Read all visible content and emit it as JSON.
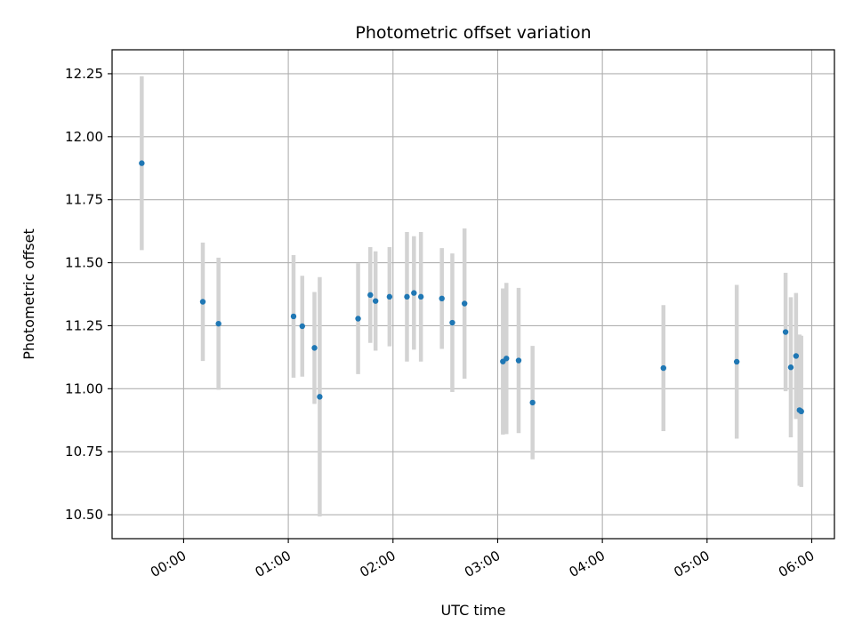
{
  "chart_data": {
    "type": "scatter",
    "title": "Photometric offset variation",
    "xlabel": "UTC time",
    "ylabel": "Photometric offset",
    "xlim": [
      "23:19",
      "06:13"
    ],
    "ylim": [
      10.405,
      12.345
    ],
    "x_ticks": [
      "00:00",
      "01:00",
      "02:00",
      "03:00",
      "04:00",
      "05:00",
      "06:00"
    ],
    "y_ticks": [
      10.5,
      10.75,
      11.0,
      11.25,
      11.5,
      11.75,
      12.0,
      12.25
    ],
    "y_tick_labels": [
      "10.50",
      "10.75",
      "11.00",
      "11.25",
      "11.50",
      "11.75",
      "12.00",
      "12.25"
    ],
    "grid": true,
    "colors": {
      "marker": "#1f77b4",
      "error_bar": "#d3d3d3",
      "grid": "#b0b0b0"
    },
    "series": [
      {
        "points": [
          {
            "x": "23:36",
            "y": 11.895,
            "err": 0.345
          },
          {
            "x": "00:11",
            "y": 11.345,
            "err": 0.235
          },
          {
            "x": "00:20",
            "y": 11.258,
            "err": 0.262
          },
          {
            "x": "01:03",
            "y": 11.287,
            "err": 0.243
          },
          {
            "x": "01:08",
            "y": 11.248,
            "err": 0.2
          },
          {
            "x": "01:15",
            "y": 11.162,
            "err": 0.222
          },
          {
            "x": "01:18",
            "y": 10.968,
            "err": 0.475
          },
          {
            "x": "01:40",
            "y": 11.278,
            "err": 0.22
          },
          {
            "x": "01:47",
            "y": 11.372,
            "err": 0.19
          },
          {
            "x": "01:50",
            "y": 11.348,
            "err": 0.197
          },
          {
            "x": "01:58",
            "y": 11.365,
            "err": 0.197
          },
          {
            "x": "02:08",
            "y": 11.365,
            "err": 0.257
          },
          {
            "x": "02:12",
            "y": 11.38,
            "err": 0.225
          },
          {
            "x": "02:16",
            "y": 11.365,
            "err": 0.257
          },
          {
            "x": "02:28",
            "y": 11.358,
            "err": 0.2
          },
          {
            "x": "02:34",
            "y": 11.262,
            "err": 0.275
          },
          {
            "x": "02:41",
            "y": 11.338,
            "err": 0.298
          },
          {
            "x": "03:03",
            "y": 11.108,
            "err": 0.29
          },
          {
            "x": "03:05",
            "y": 11.12,
            "err": 0.3
          },
          {
            "x": "03:12",
            "y": 11.112,
            "err": 0.288
          },
          {
            "x": "03:20",
            "y": 10.945,
            "err": 0.225
          },
          {
            "x": "04:35",
            "y": 11.082,
            "err": 0.25
          },
          {
            "x": "05:17",
            "y": 11.107,
            "err": 0.305
          },
          {
            "x": "05:45",
            "y": 11.225,
            "err": 0.235
          },
          {
            "x": "05:48",
            "y": 11.085,
            "err": 0.278
          },
          {
            "x": "05:51",
            "y": 11.13,
            "err": 0.25
          },
          {
            "x": "05:53",
            "y": 10.915,
            "err": 0.3
          },
          {
            "x": "05:54",
            "y": 10.91,
            "err": 0.3
          }
        ]
      }
    ]
  }
}
